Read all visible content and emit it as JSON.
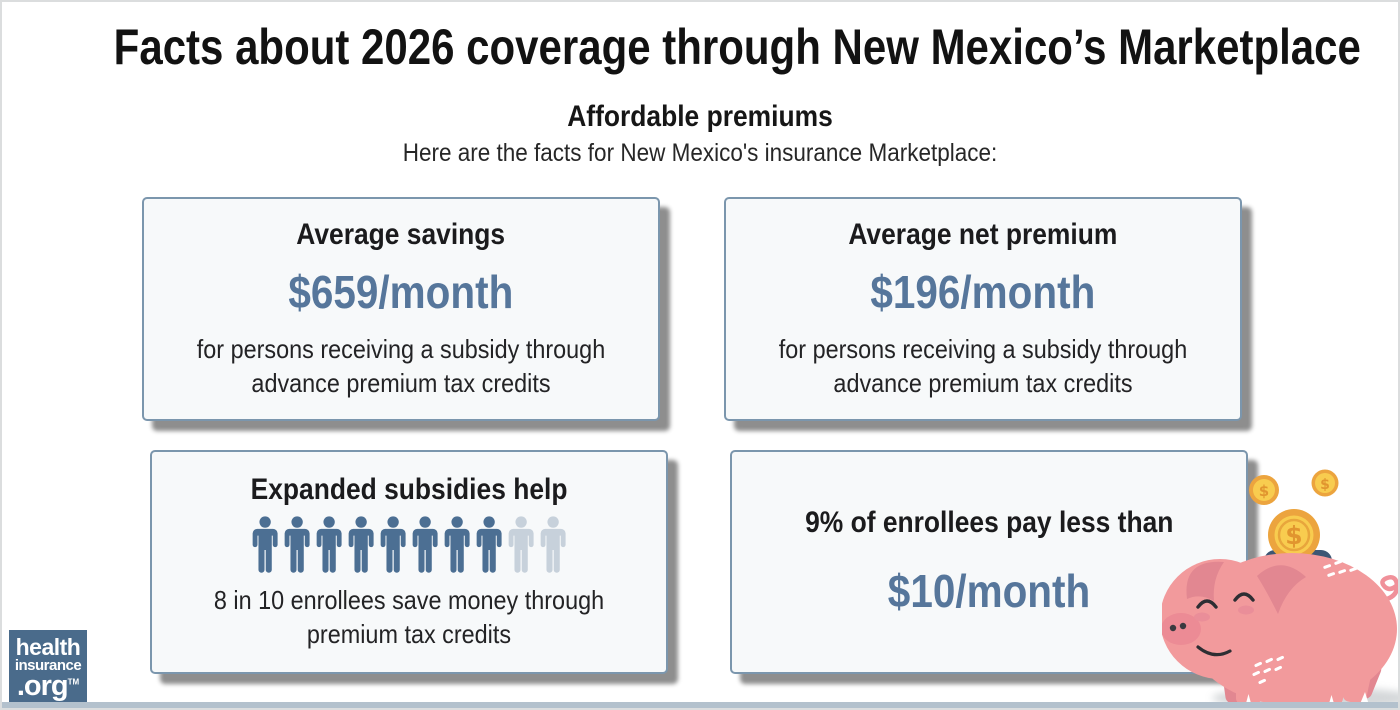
{
  "page": {
    "title": "Facts about 2026 coverage through New Mexico’s Marketplace",
    "subtitle": "Affordable premiums",
    "intro": "Here are the facts for New Mexico's insurance Marketplace:"
  },
  "cards": [
    {
      "heading": "Average savings",
      "value": "$659/month",
      "description": "for persons receiving a subsidy through advance premium tax credits"
    },
    {
      "heading": "Average net premium",
      "value": "$196/month",
      "description": "for persons receiving a subsidy through advance premium tax credits"
    },
    {
      "heading": "Expanded subsidies help",
      "description": "8 in 10 enrollees save money through premium tax credits",
      "pictograph": {
        "type": "unit-people",
        "total": 10,
        "highlighted": 8
      }
    },
    {
      "heading": "9% of enrollees pay less than",
      "value": "$10/month"
    }
  ],
  "logo": {
    "line1": "health",
    "line2": "insurance",
    "line3": ".org",
    "trademark": "TM"
  },
  "illustration": {
    "name": "piggy-bank-with-coins",
    "description": "pink piggy bank with three gold dollar coins dropping into its slot"
  },
  "colors": {
    "accent": "#56769B",
    "card_border": "#7B96AD",
    "card_bg": "#F7F9FA",
    "shadow": "#8E8E8E",
    "person_active": "#4C6F93",
    "person_inactive": "#C7D1DB",
    "logo_bg": "#4A6B8B",
    "footer_strip": "#B3C1CD",
    "text_dark": "#1B1B1D"
  }
}
